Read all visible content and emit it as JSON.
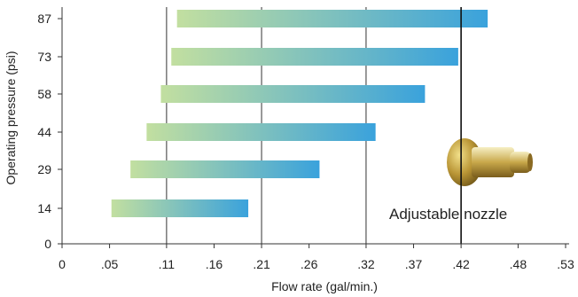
{
  "chart_data": {
    "type": "bar",
    "orientation": "horizontal",
    "title": "",
    "xlabel": "Flow rate (gal/min.)",
    "ylabel": "Operating pressure (psi)",
    "x_ticks": [
      {
        "value": 0,
        "label": "0"
      },
      {
        "value": 0.05,
        "label": ".05"
      },
      {
        "value": 0.11,
        "label": ".11"
      },
      {
        "value": 0.16,
        "label": ".16"
      },
      {
        "value": 0.21,
        "label": ".21"
      },
      {
        "value": 0.26,
        "label": ".26"
      },
      {
        "value": 0.32,
        "label": ".32"
      },
      {
        "value": 0.37,
        "label": ".37"
      },
      {
        "value": 0.42,
        "label": ".42"
      },
      {
        "value": 0.48,
        "label": ".48"
      },
      {
        "value": 0.53,
        "label": ".53"
      }
    ],
    "y_ticks": [
      {
        "value": 0,
        "label": "0"
      },
      {
        "value": 14,
        "label": "14"
      },
      {
        "value": 29,
        "label": "29"
      },
      {
        "value": 44,
        "label": "44"
      },
      {
        "value": 58,
        "label": "58"
      },
      {
        "value": 73,
        "label": "73"
      },
      {
        "value": 87,
        "label": "87"
      }
    ],
    "xlim": [
      0,
      0.53
    ],
    "vertical_gridlines_at": [
      0.11,
      0.21,
      0.32,
      0.42
    ],
    "bars": [
      {
        "pressure": 14,
        "flow_min": 0.052,
        "flow_max": 0.196
      },
      {
        "pressure": 29,
        "flow_min": 0.072,
        "flow_max": 0.271
      },
      {
        "pressure": 44,
        "flow_min": 0.089,
        "flow_max": 0.33
      },
      {
        "pressure": 58,
        "flow_min": 0.104,
        "flow_max": 0.382
      },
      {
        "pressure": 73,
        "flow_min": 0.115,
        "flow_max": 0.417
      },
      {
        "pressure": 87,
        "flow_min": 0.121,
        "flow_max": 0.448
      }
    ],
    "gradient_colors": [
      "#c2dfa0",
      "#3aa2dc"
    ],
    "annotation": "Adjustable nozzle",
    "annotation_marker_x": 0.42
  }
}
